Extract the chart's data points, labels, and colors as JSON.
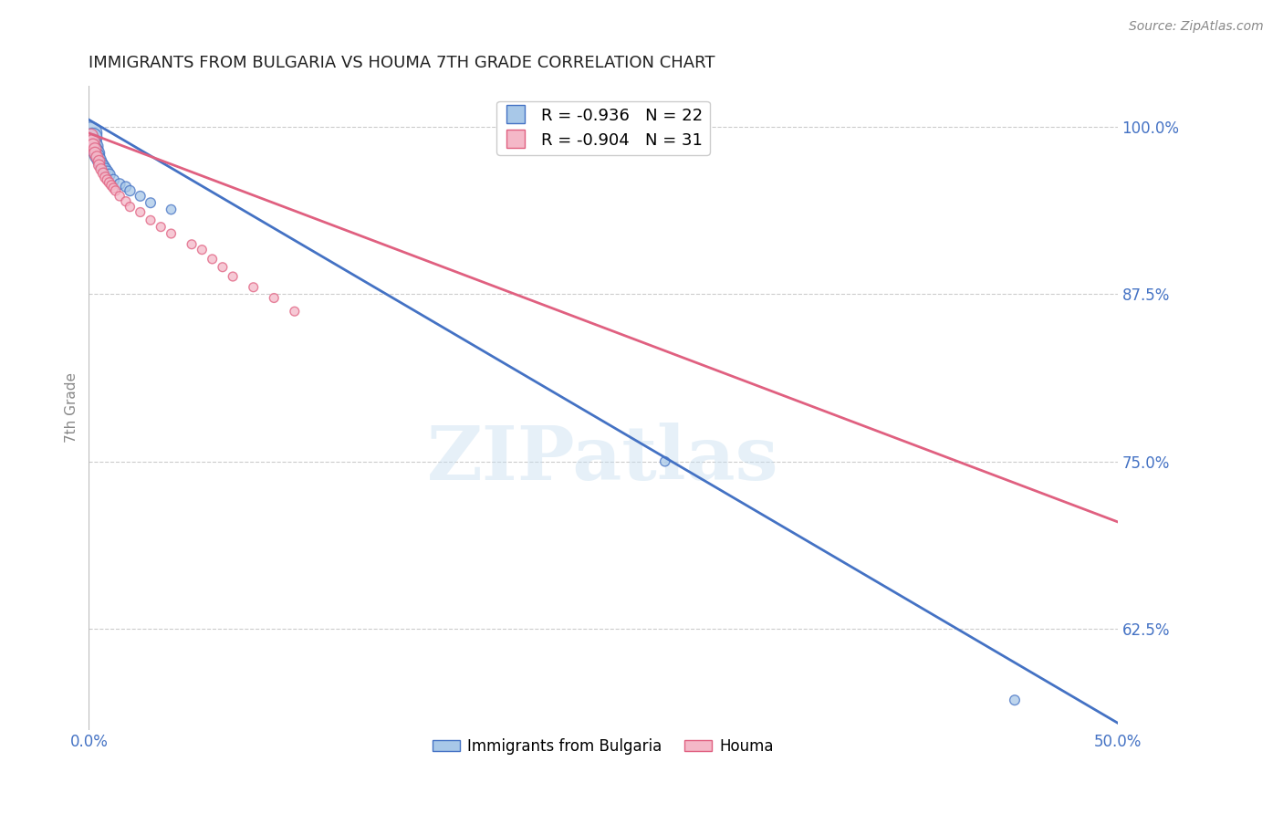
{
  "title": "IMMIGRANTS FROM BULGARIA VS HOUMA 7TH GRADE CORRELATION CHART",
  "source_text": "Source: ZipAtlas.com",
  "ylabel": "7th Grade",
  "xlim": [
    0.0,
    0.5
  ],
  "ylim": [
    0.55,
    1.03
  ],
  "xtick_positions": [
    0.0,
    0.1,
    0.2,
    0.3,
    0.4,
    0.5
  ],
  "xticklabels": [
    "0.0%",
    "",
    "",
    "",
    "",
    "50.0%"
  ],
  "yticks_right": [
    1.0,
    0.875,
    0.75,
    0.625
  ],
  "ytick_right_labels": [
    "100.0%",
    "87.5%",
    "75.0%",
    "62.5%"
  ],
  "blue_label": "Immigrants from Bulgaria",
  "pink_label": "Houma",
  "blue_R": -0.936,
  "blue_N": 22,
  "pink_R": -0.904,
  "pink_N": 31,
  "blue_fill_color": "#a8c8e8",
  "pink_fill_color": "#f4b8c8",
  "blue_edge_color": "#4472c4",
  "pink_edge_color": "#e06080",
  "blue_line_color": "#4472c4",
  "pink_line_color": "#e06080",
  "blue_scatter_x": [
    0.001,
    0.002,
    0.002,
    0.003,
    0.003,
    0.004,
    0.004,
    0.005,
    0.006,
    0.007,
    0.008,
    0.009,
    0.01,
    0.012,
    0.015,
    0.018,
    0.02,
    0.025,
    0.03,
    0.04,
    0.28,
    0.45
  ],
  "blue_scatter_y": [
    0.995,
    0.992,
    0.988,
    0.985,
    0.982,
    0.98,
    0.978,
    0.975,
    0.972,
    0.97,
    0.968,
    0.966,
    0.964,
    0.96,
    0.957,
    0.955,
    0.952,
    0.948,
    0.943,
    0.938,
    0.75,
    0.572
  ],
  "blue_scatter_sizes": [
    300,
    200,
    180,
    160,
    150,
    140,
    130,
    120,
    110,
    100,
    90,
    85,
    80,
    75,
    70,
    65,
    65,
    60,
    60,
    55,
    55,
    60
  ],
  "pink_scatter_x": [
    0.001,
    0.002,
    0.002,
    0.003,
    0.003,
    0.004,
    0.005,
    0.005,
    0.006,
    0.007,
    0.008,
    0.009,
    0.01,
    0.011,
    0.012,
    0.013,
    0.015,
    0.018,
    0.02,
    0.025,
    0.03,
    0.035,
    0.04,
    0.05,
    0.055,
    0.06,
    0.065,
    0.07,
    0.08,
    0.09,
    0.1
  ],
  "pink_scatter_y": [
    0.993,
    0.989,
    0.986,
    0.983,
    0.98,
    0.977,
    0.974,
    0.971,
    0.968,
    0.965,
    0.962,
    0.96,
    0.958,
    0.956,
    0.954,
    0.952,
    0.948,
    0.944,
    0.94,
    0.936,
    0.93,
    0.925,
    0.92,
    0.912,
    0.908,
    0.901,
    0.895,
    0.888,
    0.88,
    0.872,
    0.862
  ],
  "pink_scatter_sizes": [
    120,
    110,
    100,
    95,
    90,
    85,
    80,
    75,
    72,
    68,
    65,
    62,
    60,
    58,
    56,
    55,
    54,
    53,
    52,
    51,
    50,
    50,
    50,
    50,
    50,
    50,
    50,
    50,
    50,
    50,
    50
  ],
  "blue_line_x": [
    0.0,
    0.5
  ],
  "blue_line_y": [
    1.005,
    0.555
  ],
  "pink_line_x": [
    0.0,
    0.5
  ],
  "pink_line_y": [
    0.995,
    0.705
  ],
  "watermark": "ZIPatlas",
  "bg_color": "#ffffff",
  "grid_color": "#cccccc",
  "title_color": "#222222",
  "axis_tick_color": "#4472c4",
  "right_tick_color": "#4472c4"
}
